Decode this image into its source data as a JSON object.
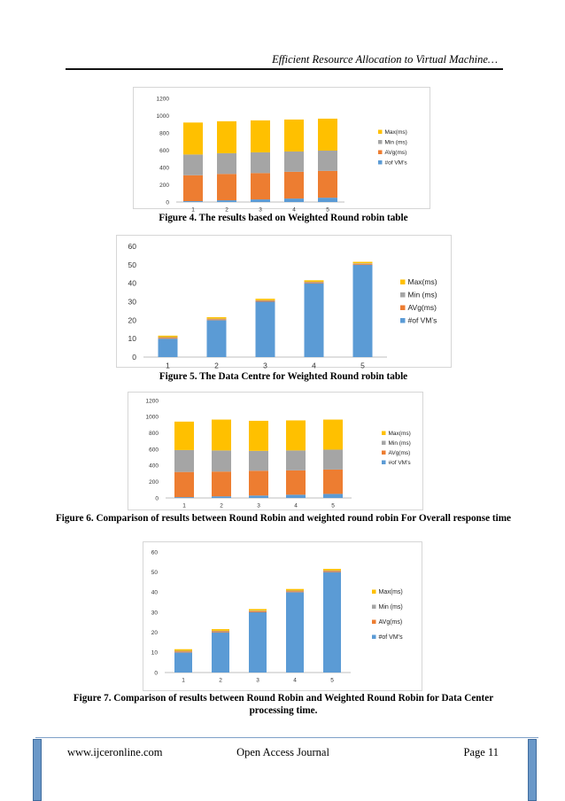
{
  "header": {
    "running_title": "Efficient Resource Allocation to Virtual Machine…"
  },
  "legend_labels": [
    "Max(ms)",
    "Min (ms)",
    "AVg(ms)",
    "#of VM’s"
  ],
  "series_colors": [
    "#5b9bd5",
    "#ed7d31",
    "#a5a5a5",
    "#ffc000"
  ],
  "figures": [
    {
      "caption": "Figure 4. The results based on Weighted Round robin table"
    },
    {
      "caption": "Figure 5. The Data Centre for Weighted Round robin table"
    },
    {
      "caption": "Figure 6. Comparison of results between Round Robin and weighted round robin For Overall response time"
    },
    {
      "caption": "Figure 7.  Comparison of results between Round Robin and Weighted Round Robin for Data Center processing time."
    }
  ],
  "chart_data": [
    {
      "type": "bar",
      "stacked": true,
      "categories": [
        "1",
        "2",
        "3",
        "4",
        "5"
      ],
      "ylim": [
        0,
        1200
      ],
      "yticks": [
        0,
        200,
        400,
        600,
        800,
        1000,
        1200
      ],
      "grid": false,
      "legend": "right",
      "series": [
        {
          "name": "#of VM’s",
          "values": [
            10,
            20,
            30,
            40,
            50
          ]
        },
        {
          "name": "AVg(ms)",
          "values": [
            300,
            305,
            305,
            310,
            310
          ]
        },
        {
          "name": "Min (ms)",
          "values": [
            240,
            240,
            240,
            235,
            235
          ]
        },
        {
          "name": "Max(ms)",
          "values": [
            370,
            370,
            370,
            370,
            370
          ]
        }
      ]
    },
    {
      "type": "bar",
      "stacked": true,
      "categories": [
        "1",
        "2",
        "3",
        "4",
        "5"
      ],
      "ylim": [
        0,
        60
      ],
      "yticks": [
        0,
        10,
        20,
        30,
        40,
        50,
        60
      ],
      "grid": false,
      "legend": "right",
      "series": [
        {
          "name": "#of VM’s",
          "values": [
            10,
            20,
            30,
            40,
            50
          ]
        },
        {
          "name": "AVg(ms)",
          "values": [
            0.5,
            0.5,
            0.5,
            0.5,
            0.5
          ]
        },
        {
          "name": "Min (ms)",
          "values": [
            0.3,
            0.3,
            0.3,
            0.3,
            0.3
          ]
        },
        {
          "name": "Max(ms)",
          "values": [
            0.8,
            0.8,
            0.8,
            0.8,
            0.8
          ]
        }
      ]
    },
    {
      "type": "bar",
      "stacked": true,
      "categories": [
        "1",
        "2",
        "3",
        "4",
        "5"
      ],
      "ylim": [
        0,
        1200
      ],
      "yticks": [
        0,
        200,
        400,
        600,
        800,
        1000,
        1200
      ],
      "grid": false,
      "legend": "right",
      "series": [
        {
          "name": "#of VM’s",
          "values": [
            10,
            20,
            30,
            40,
            50
          ]
        },
        {
          "name": "AVg(ms)",
          "values": [
            310,
            305,
            305,
            300,
            300
          ]
        },
        {
          "name": "Min (ms)",
          "values": [
            270,
            260,
            245,
            245,
            245
          ]
        },
        {
          "name": "Max(ms)",
          "values": [
            350,
            380,
            370,
            370,
            370
          ]
        }
      ]
    },
    {
      "type": "bar",
      "stacked": true,
      "categories": [
        "1",
        "2",
        "3",
        "4",
        "5"
      ],
      "ylim": [
        0,
        60
      ],
      "yticks": [
        0,
        10,
        20,
        30,
        40,
        50,
        60
      ],
      "grid": false,
      "legend": "right",
      "series": [
        {
          "name": "#of VM’s",
          "values": [
            10,
            20,
            30,
            40,
            50
          ]
        },
        {
          "name": "AVg(ms)",
          "values": [
            0.5,
            0.5,
            0.5,
            0.5,
            0.5
          ]
        },
        {
          "name": "Min (ms)",
          "values": [
            0.3,
            0.3,
            0.3,
            0.3,
            0.3
          ]
        },
        {
          "name": "Max(ms)",
          "values": [
            0.8,
            0.8,
            0.8,
            0.8,
            0.8
          ]
        }
      ]
    }
  ],
  "footer": {
    "website": "www.ijceronline.com",
    "journal": "Open Access Journal",
    "page": "Page 11"
  }
}
